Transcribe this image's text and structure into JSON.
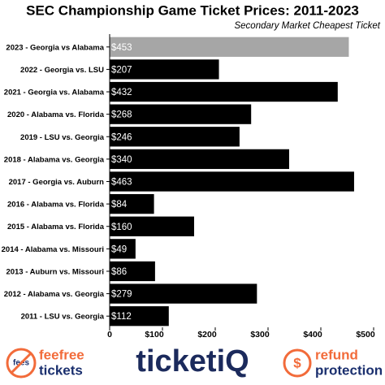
{
  "chart_data": {
    "type": "bar",
    "orientation": "horizontal",
    "title": "SEC Championship Game Ticket Prices: 2011-2023",
    "subtitle": "Secondary Market Cheapest Ticket",
    "categories": [
      "2023 - Georgia vs Alabama",
      "2022 - Georgia vs. LSU",
      "2021 - Georgia vs. Alabama",
      "2020 - Alabama vs. Florida",
      "2019 - LSU vs. Georgia",
      "2018 - Alabama vs. Georgia",
      "2017 - Georgia vs. Auburn",
      "2016 - Alabama vs. Florida",
      "2015 - Alabama vs. Florida",
      "2014 - Alabama vs. Missouri",
      "2013 - Auburn vs. Missouri",
      "2012 - Alabama vs. Georgia",
      "2011 - LSU vs. Georgia"
    ],
    "values": [
      453,
      207,
      432,
      268,
      246,
      340,
      463,
      84,
      160,
      49,
      86,
      279,
      112
    ],
    "value_labels": [
      "$453",
      "$207",
      "$432",
      "$268",
      "$246",
      "$340",
      "$463",
      "$84",
      "$160",
      "$49",
      "$86",
      "$279",
      "$112"
    ],
    "colors": [
      "#a6a6a6",
      "#000000",
      "#000000",
      "#000000",
      "#000000",
      "#000000",
      "#000000",
      "#000000",
      "#000000",
      "#000000",
      "#000000",
      "#000000",
      "#000000"
    ],
    "xlim": [
      0,
      500
    ],
    "xticks": [
      0,
      {
        "value": 100,
        "label": "$100"
      },
      {
        "value": 200,
        "label": "$200"
      },
      {
        "value": 300,
        "label": "$300"
      },
      {
        "value": 400,
        "label": "$400"
      },
      {
        "value": 500,
        "label": "$500"
      }
    ],
    "grid": false
  },
  "footer": {
    "fees_icon": "fees",
    "feefree": "feefree",
    "tickets": "tickets",
    "brand": "ticketiQ",
    "refund_icon": "$",
    "refund": "refund",
    "protection": "protection"
  }
}
